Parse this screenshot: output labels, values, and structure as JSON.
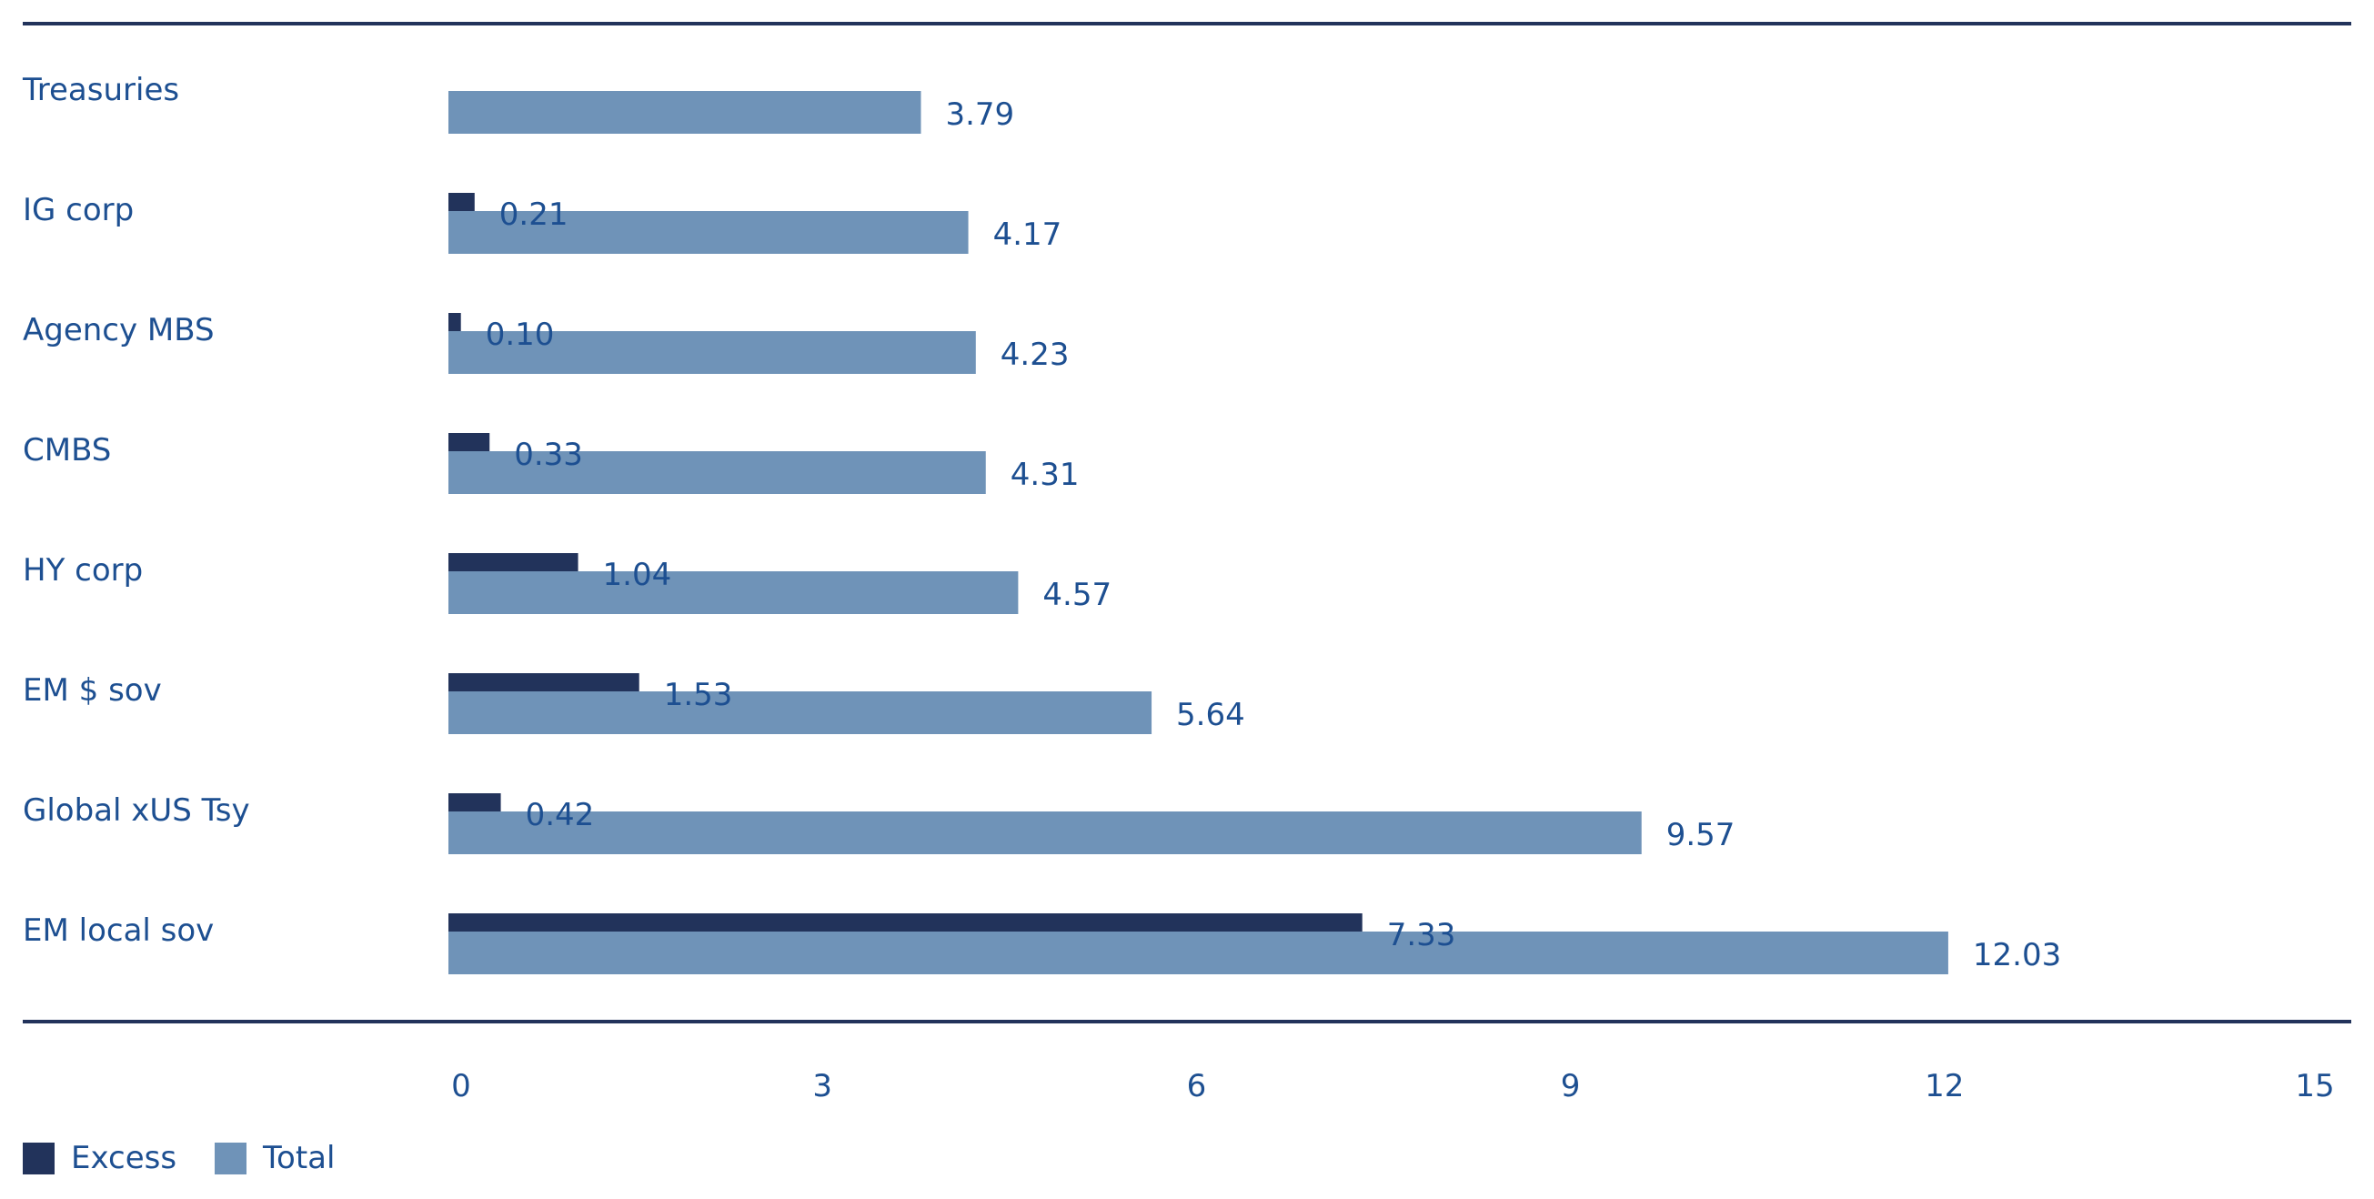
{
  "chart_data": {
    "type": "bar",
    "orientation": "horizontal",
    "categories": [
      "Treasuries",
      "IG corp",
      "Agency MBS",
      "CMBS",
      "HY corp",
      "EM $ sov",
      "Global xUS Tsy",
      "EM local sov"
    ],
    "series": [
      {
        "name": "Excess",
        "color": "#22335b",
        "values": [
          null,
          0.21,
          0.1,
          0.33,
          1.04,
          1.53,
          0.42,
          7.33
        ],
        "labels": [
          "",
          "0.21",
          "0.10",
          "0.33",
          "1.04",
          "1.53",
          "0.42",
          "7.33"
        ]
      },
      {
        "name": "Total",
        "color": "#6f93b8",
        "values": [
          3.79,
          4.17,
          4.23,
          4.31,
          4.57,
          5.64,
          9.57,
          12.03
        ],
        "labels": [
          "3.79",
          "4.17",
          "4.23",
          "4.31",
          "4.57",
          "5.64",
          "9.57",
          "12.03"
        ]
      }
    ],
    "xlim": [
      0,
      15
    ],
    "xticks": [
      0,
      3,
      6,
      9,
      12,
      15
    ],
    "xtick_labels": [
      "0",
      "3",
      "6",
      "9",
      "12",
      "15"
    ],
    "grid": false,
    "legend_position": "bottom-left",
    "label_color": "#1d4f91",
    "axis_line_color": "#22335b"
  }
}
